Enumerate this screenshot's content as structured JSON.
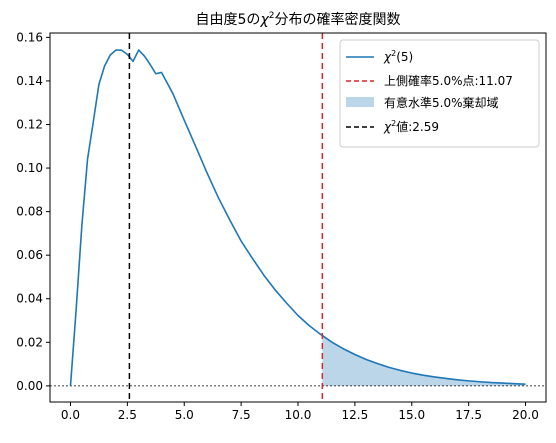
{
  "chart_data": {
    "type": "line",
    "title": "自由度5のχ²分布の確率密度関数",
    "title_parts": {
      "prefix": "自由度5の",
      "symbol": "χ",
      "superscript": "2",
      "suffix": "分布の確率密度関数"
    },
    "xlabel": "",
    "ylabel": "",
    "xlim": [
      -0.9,
      20.9
    ],
    "ylim": [
      -0.0074,
      0.162
    ],
    "xticks": [
      0.0,
      2.5,
      5.0,
      7.5,
      10.0,
      12.5,
      15.0,
      17.5,
      20.0
    ],
    "xtick_labels": [
      "0.0",
      "2.5",
      "5.0",
      "7.5",
      "10.0",
      "12.5",
      "15.0",
      "17.5",
      "20.0"
    ],
    "yticks": [
      0.0,
      0.02,
      0.04,
      0.06,
      0.08,
      0.1,
      0.12,
      0.14,
      0.16
    ],
    "ytick_labels": [
      "0.00",
      "0.02",
      "0.04",
      "0.06",
      "0.08",
      "0.10",
      "0.12",
      "0.14",
      "0.16"
    ],
    "grid": false,
    "legend_position": "top-right",
    "series": [
      {
        "name": "χ²(5)",
        "kind": "line",
        "color": "#1f77b4",
        "x": [
          0,
          0.25,
          0.5,
          0.75,
          1,
          1.25,
          1.5,
          1.75,
          2,
          2.25,
          2.5,
          2.75,
          3,
          3.25,
          3.5,
          3.75,
          4,
          4.5,
          5,
          5.5,
          6,
          6.5,
          7,
          7.5,
          8,
          8.5,
          9,
          9.5,
          10,
          10.5,
          11,
          11.5,
          12,
          12.5,
          13,
          13.5,
          14,
          14.5,
          15,
          15.5,
          16,
          16.5,
          17,
          17.5,
          18,
          18.5,
          19,
          19.5,
          20
        ],
        "y": [
          0,
          0.0352,
          0.0736,
          0.1041,
          0.121,
          0.1384,
          0.1469,
          0.1519,
          0.1542,
          0.1541,
          0.1522,
          0.149,
          0.1542,
          0.1514,
          0.1476,
          0.1433,
          0.1439,
          0.1342,
          0.122,
          0.11,
          0.0978,
          0.0864,
          0.0762,
          0.0665,
          0.0585,
          0.0508,
          0.044,
          0.038,
          0.0323,
          0.0276,
          0.0236,
          0.02,
          0.017,
          0.0144,
          0.0121,
          0.0102,
          0.0085,
          0.0071,
          0.0059,
          0.0049,
          0.0041,
          0.0034,
          0.0028,
          0.0023,
          0.0019,
          0.0015,
          0.0013,
          0.001,
          0.0008
        ]
      }
    ],
    "critical_line": {
      "name": "上側確率5.0%点:11.07",
      "x": 11.07,
      "color": "#d62728",
      "style": "dashed"
    },
    "rejection_region": {
      "name": "有意水準5.0%棄却域",
      "x_from": 11.07,
      "x_to": 20,
      "color": "#1f77b4",
      "opacity": 0.3
    },
    "chi2_value_line": {
      "name": "χ²値:2.59",
      "name_parts": {
        "symbol": "χ",
        "superscript": "2",
        "suffix": "値:2.59"
      },
      "x": 2.59,
      "color": "#000000",
      "style": "dashed"
    },
    "legend_series_parts": {
      "symbol": "χ",
      "superscript": "2",
      "suffix": "(5)"
    },
    "zero_line": {
      "y": 0,
      "color": "#000000",
      "style": "dotted"
    }
  }
}
